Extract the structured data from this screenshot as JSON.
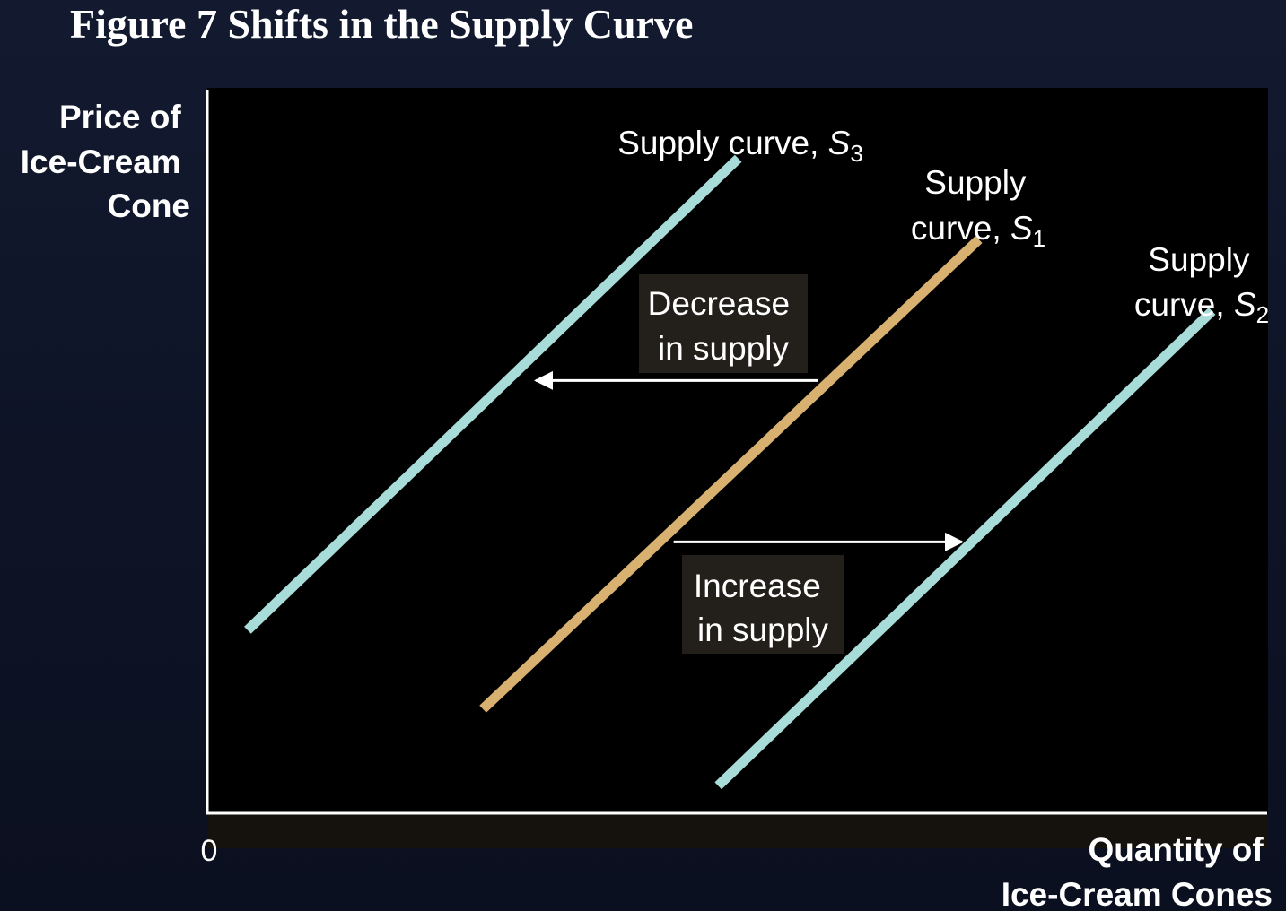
{
  "page": {
    "title": "Figure 7 Shifts in the Supply Curve"
  },
  "colors": {
    "background": "#0b1020",
    "plot_background": "#000000",
    "axis": "#ffffff",
    "text": "#ffffff",
    "annotation_box": "#231f1a",
    "supply_shifted": "#a8dcd9",
    "supply_original": "#d8b070"
  },
  "chart_data": {
    "type": "line",
    "title": "Figure 7 Shifts in the Supply Curve",
    "ylabel": [
      "Price of",
      "Ice-Cream",
      "Cone"
    ],
    "xlabel": [
      "Quantity of",
      "Ice-Cream Cones"
    ],
    "origin_label": "0",
    "xlim": [
      0,
      100
    ],
    "ylim": [
      0,
      100
    ],
    "grid": false,
    "series": [
      {
        "id": "s3",
        "label_lines": [
          "Supply curve, "
        ],
        "label_symbol": "S",
        "label_subscript": "3",
        "color": "#a8dcd9",
        "x": [
          3.8,
          50.1
        ],
        "y": [
          25.3,
          90.5
        ]
      },
      {
        "id": "s1",
        "label_lines": [
          "Supply",
          "curve, "
        ],
        "label_symbol": "S",
        "label_subscript": "1",
        "color": "#d8b070",
        "x": [
          26.0,
          72.8
        ],
        "y": [
          14.4,
          79.3
        ]
      },
      {
        "id": "s2",
        "label_lines": [
          "Supply",
          "curve, "
        ],
        "label_symbol": "S",
        "label_subscript": "2",
        "color": "#a8dcd9",
        "x": [
          48.2,
          94.8
        ],
        "y": [
          3.8,
          69.4
        ]
      }
    ],
    "annotations": [
      {
        "id": "decrease",
        "lines": [
          "Decrease",
          "in supply"
        ],
        "arrow_from": [
          57.6,
          59.8
        ],
        "arrow_to": [
          31.0,
          59.8
        ]
      },
      {
        "id": "increase",
        "lines": [
          "Increase",
          "in supply"
        ],
        "arrow_from": [
          44.0,
          37.5
        ],
        "arrow_to": [
          71.2,
          37.5
        ]
      }
    ]
  }
}
